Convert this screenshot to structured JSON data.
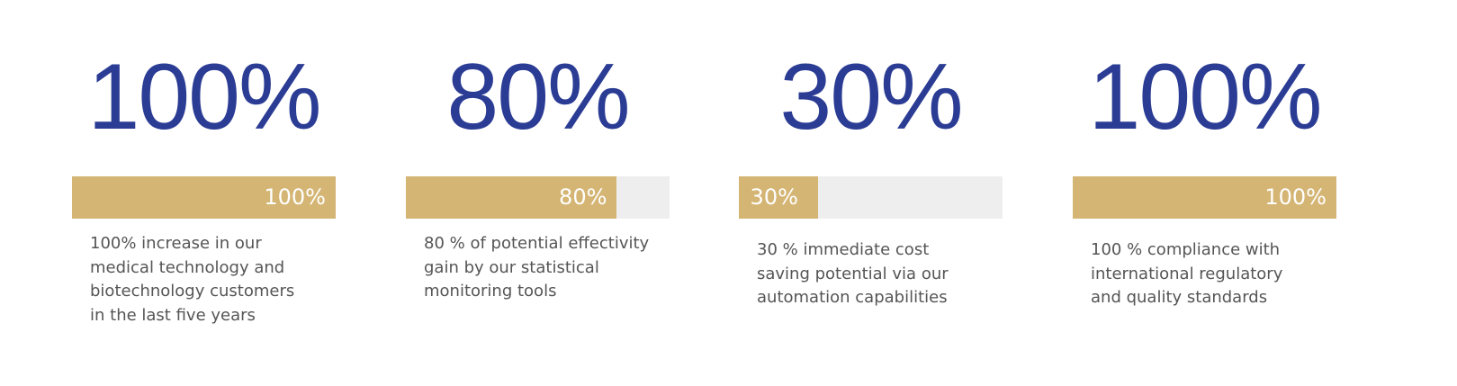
{
  "scale": [
    0,
    100
  ],
  "stats": [
    {
      "headline": "100%",
      "value": 100,
      "bar_label": "100%",
      "description": [
        "100% increase in our",
        "medical technology and",
        "biotechnology customers",
        "in the last five years"
      ]
    },
    {
      "headline": "80%",
      "value": 80,
      "bar_label": "80%",
      "description": [
        "80 % of potential effectivity",
        "gain by our statistical",
        "monitoring tools"
      ]
    },
    {
      "headline": "30%",
      "value": 30,
      "bar_label": "30%",
      "description": [
        "30 % immediate cost",
        "saving potential via our",
        "automation capabilities"
      ]
    },
    {
      "headline": "100%",
      "value": 100,
      "bar_label": "100%",
      "description": [
        "100 % compliance with",
        "international regulatory",
        "and quality standards"
      ]
    }
  ]
}
